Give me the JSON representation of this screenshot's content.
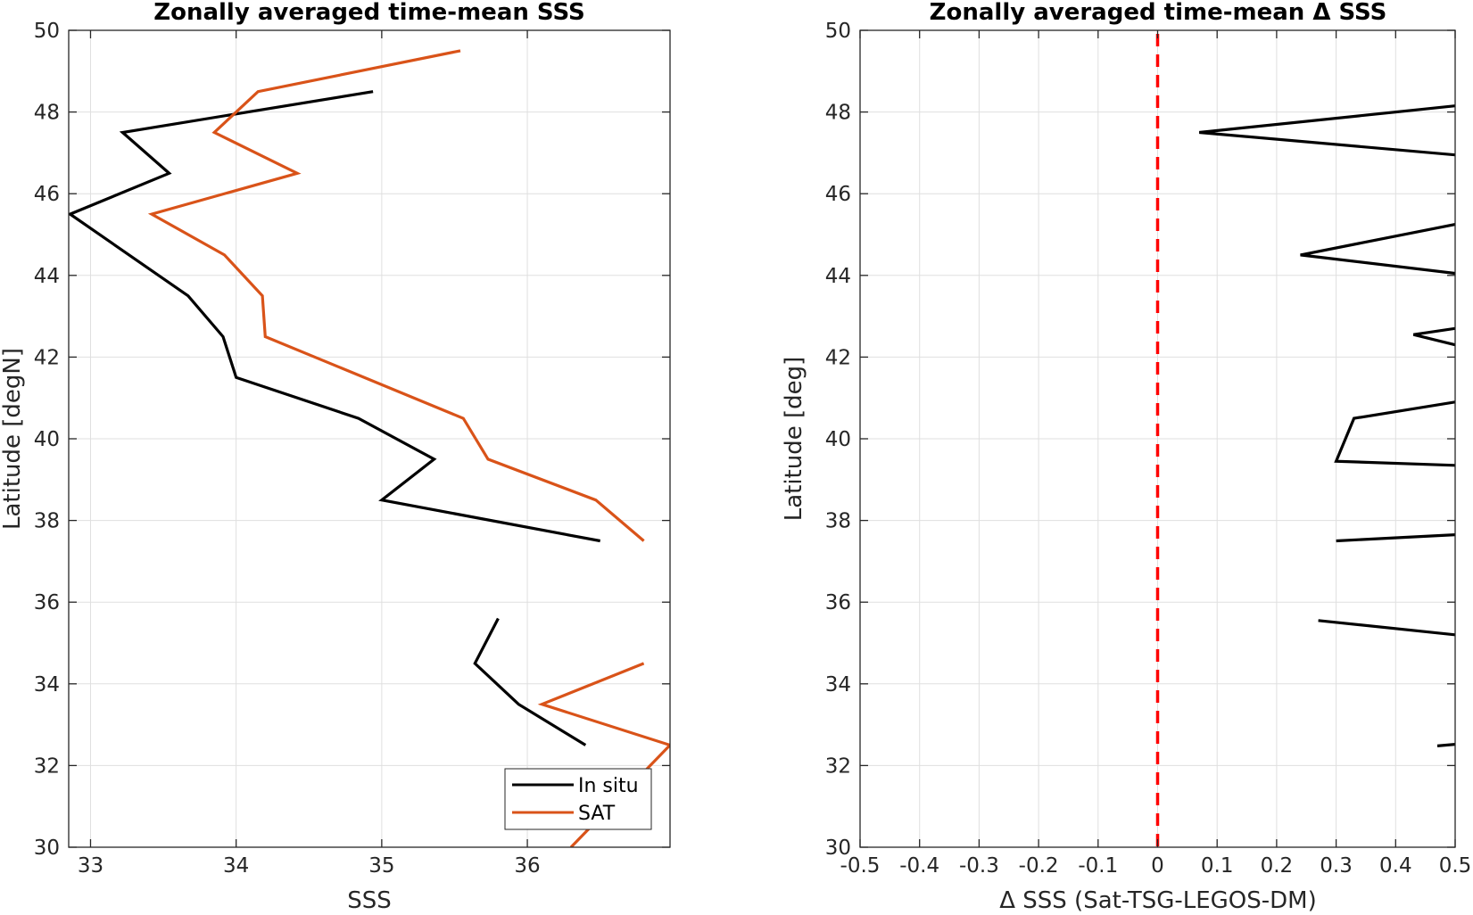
{
  "chart_data": [
    {
      "type": "line",
      "title": "Zonally averaged time-mean SSS",
      "xlabel": "SSS",
      "ylabel": "Latitude [degN]",
      "xlim": [
        32.85,
        36.98
      ],
      "ylim": [
        30,
        50
      ],
      "xticks": [
        33,
        34,
        35,
        36
      ],
      "xtick_labels": [
        "33",
        "34",
        "35",
        "36"
      ],
      "yticks": [
        30,
        32,
        34,
        36,
        38,
        40,
        42,
        44,
        46,
        48,
        50
      ],
      "ytick_labels": [
        "30",
        "32",
        "34",
        "36",
        "38",
        "40",
        "42",
        "44",
        "46",
        "48",
        "50"
      ],
      "grid": true,
      "legend": "bottom-right",
      "series": [
        {
          "name": "In situ",
          "color": "#000000",
          "segments": [
            [
              [
                36.4,
                32.5
              ],
              [
                35.94,
                33.5
              ],
              [
                35.64,
                34.5
              ],
              [
                35.8,
                35.6
              ]
            ],
            [
              [
                36.5,
                37.5
              ],
              [
                35.0,
                38.5
              ],
              [
                35.36,
                39.5
              ],
              [
                34.84,
                40.5
              ],
              [
                34.0,
                41.5
              ],
              [
                33.91,
                42.5
              ],
              [
                33.67,
                43.5
              ],
              [
                32.86,
                45.5
              ],
              [
                33.54,
                46.5
              ],
              [
                33.22,
                47.5
              ],
              [
                34.94,
                48.5
              ]
            ]
          ]
        },
        {
          "name": "SAT",
          "color": "#d95319",
          "segments": [
            [
              [
                36.3,
                30.0
              ],
              [
                36.98,
                32.5
              ],
              [
                36.1,
                33.5
              ],
              [
                36.8,
                34.5
              ]
            ],
            [
              [
                36.8,
                37.5
              ],
              [
                36.47,
                38.5
              ],
              [
                35.73,
                39.5
              ],
              [
                35.56,
                40.5
              ],
              [
                34.2,
                42.5
              ],
              [
                34.18,
                43.5
              ],
              [
                33.92,
                44.5
              ],
              [
                33.42,
                45.5
              ],
              [
                34.42,
                46.5
              ],
              [
                33.85,
                47.5
              ],
              [
                34.15,
                48.5
              ],
              [
                35.54,
                49.5
              ]
            ]
          ]
        }
      ]
    },
    {
      "type": "line",
      "title": "Zonally averaged time-mean Δ SSS",
      "xlabel": "Δ SSS (Sat-TSG-LEGOS-DM)",
      "ylabel": "Latitude [deg]",
      "xlim": [
        -0.5,
        0.5
      ],
      "ylim": [
        30,
        50
      ],
      "xticks": [
        -0.5,
        -0.4,
        -0.3,
        -0.2,
        -0.1,
        0,
        0.1,
        0.2,
        0.3,
        0.4,
        0.5
      ],
      "xtick_labels": [
        "-0.5",
        "-0.4",
        "-0.3",
        "-0.2",
        "-0.1",
        "0",
        "0.1",
        "0.2",
        "0.3",
        "0.4",
        "0.5"
      ],
      "yticks": [
        30,
        32,
        34,
        36,
        38,
        40,
        42,
        44,
        46,
        48,
        50
      ],
      "ytick_labels": [
        "30",
        "32",
        "34",
        "36",
        "38",
        "40",
        "42",
        "44",
        "46",
        "48",
        "50"
      ],
      "grid": true,
      "reference_line": {
        "x": 0,
        "color": "#ff0000",
        "style": "dashed"
      },
      "series": [
        {
          "color": "#000000",
          "segments": [
            [
              [
                0.47,
                32.48
              ],
              [
                0.5,
                32.52
              ]
            ],
            [
              [
                0.5,
                35.2
              ],
              [
                0.27,
                35.55
              ]
            ],
            [
              [
                0.3,
                37.5
              ],
              [
                0.5,
                37.65
              ]
            ],
            [
              [
                0.5,
                39.35
              ],
              [
                0.3,
                39.45
              ],
              [
                0.33,
                40.5
              ],
              [
                0.5,
                40.9
              ]
            ],
            [
              [
                0.5,
                42.3
              ],
              [
                0.43,
                42.55
              ],
              [
                0.5,
                42.7
              ]
            ],
            [
              [
                0.5,
                44.05
              ],
              [
                0.24,
                44.5
              ],
              [
                0.5,
                45.25
              ]
            ],
            [
              [
                0.5,
                46.95
              ],
              [
                0.07,
                47.5
              ],
              [
                0.5,
                48.15
              ]
            ]
          ]
        }
      ]
    }
  ],
  "legend": {
    "entries": [
      {
        "label": "In situ",
        "color": "#000000"
      },
      {
        "label": "SAT",
        "color": "#d95319"
      }
    ]
  }
}
